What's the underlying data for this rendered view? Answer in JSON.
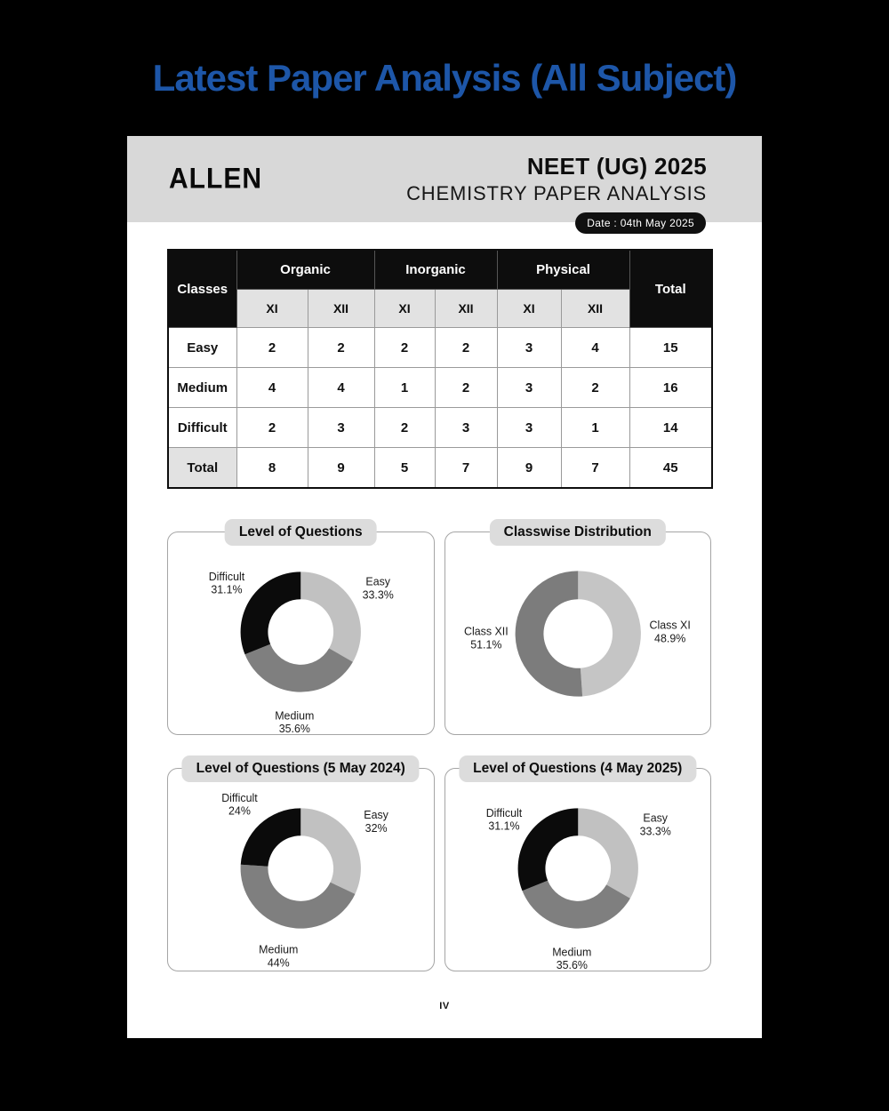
{
  "page_title": "Latest Paper Analysis (All Subject)",
  "header": {
    "brand": "ALLEN",
    "title": "NEET (UG) 2025",
    "subtitle": "CHEMISTRY PAPER ANALYSIS",
    "date_badge": "Date : 04th May 2025"
  },
  "table": {
    "corner_label": "Classes",
    "groups": [
      {
        "label": "Organic"
      },
      {
        "label": "Inorganic"
      },
      {
        "label": "Physical"
      }
    ],
    "subheaders": [
      "XI",
      "XII",
      "XI",
      "XII",
      "XI",
      "XII"
    ],
    "total_label": "Total",
    "rows": [
      {
        "label": "Easy",
        "values": [
          2,
          2,
          2,
          2,
          3,
          4
        ],
        "total": 15,
        "is_total": false
      },
      {
        "label": "Medium",
        "values": [
          4,
          4,
          1,
          2,
          3,
          2
        ],
        "total": 16,
        "is_total": false
      },
      {
        "label": "Difficult",
        "values": [
          2,
          3,
          2,
          3,
          3,
          1
        ],
        "total": 14,
        "is_total": false
      },
      {
        "label": "Total",
        "values": [
          8,
          9,
          5,
          7,
          9,
          7
        ],
        "total": 45,
        "is_total": true
      }
    ]
  },
  "chart_data": [
    {
      "type": "pie",
      "donut": true,
      "title": "Level of Questions",
      "labels_position": "outside",
      "legend": "none",
      "slices": [
        {
          "label": "Easy",
          "value": 33.3,
          "display": "33.3%",
          "color": "#c1c1c1"
        },
        {
          "label": "Medium",
          "value": 35.6,
          "display": "35.6%",
          "color": "#7f7f7f"
        },
        {
          "label": "Difficult",
          "value": 31.1,
          "display": "31.1%",
          "color": "#0b0b0b"
        }
      ]
    },
    {
      "type": "pie",
      "donut": true,
      "title": "Classwise Distribution",
      "labels_position": "outside",
      "legend": "none",
      "slices": [
        {
          "label": "Class XI",
          "value": 48.9,
          "display": "48.9%",
          "color": "#c5c5c5"
        },
        {
          "label": "Class XII",
          "value": 51.1,
          "display": "51.1%",
          "color": "#7c7c7c"
        }
      ]
    },
    {
      "type": "pie",
      "donut": true,
      "title": "Level of Questions (5 May 2024)",
      "labels_position": "outside",
      "legend": "none",
      "slices": [
        {
          "label": "Easy",
          "value": 32,
          "display": "32%",
          "color": "#c1c1c1"
        },
        {
          "label": "Medium",
          "value": 44,
          "display": "44%",
          "color": "#7f7f7f"
        },
        {
          "label": "Difficult",
          "value": 24,
          "display": "24%",
          "color": "#0b0b0b"
        }
      ]
    },
    {
      "type": "pie",
      "donut": true,
      "title": "Level of Questions (4 May 2025)",
      "labels_position": "outside",
      "legend": "none",
      "slices": [
        {
          "label": "Easy",
          "value": 33.3,
          "display": "33.3%",
          "color": "#c1c1c1"
        },
        {
          "label": "Medium",
          "value": 35.6,
          "display": "35.6%",
          "color": "#7f7f7f"
        },
        {
          "label": "Difficult",
          "value": 31.1,
          "display": "31.1%",
          "color": "#0b0b0b"
        }
      ]
    }
  ],
  "footer": {
    "page_number": "IV"
  },
  "colors": {
    "accent_blue": "#1d56a8",
    "banner_gray": "#d8d8d8",
    "pill_gray": "#dcdcdc",
    "badge_black": "#101010",
    "slice_light": "#c1c1c1",
    "slice_mid": "#7f7f7f",
    "slice_black": "#0b0b0b"
  }
}
